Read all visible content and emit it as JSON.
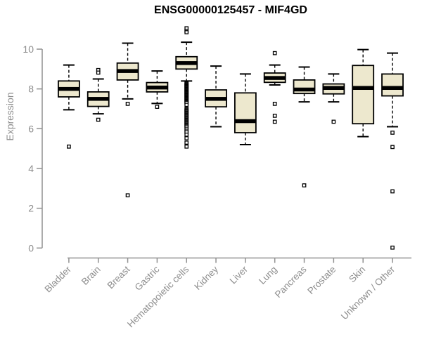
{
  "chart_data": {
    "type": "boxplot",
    "title": "ENSG00000125457 - MIF4GD",
    "xlabel": "",
    "ylabel": "Expression",
    "ylim": [
      0,
      11.2
    ],
    "yticks": [
      0,
      2,
      4,
      6,
      8,
      10
    ],
    "grid": false,
    "legend": "none",
    "categories": [
      "Bladder",
      "Brain",
      "Breast",
      "Gastric",
      "Hematopoietic cells",
      "Kidney",
      "Liver",
      "Lung",
      "Pancreas",
      "Prostate",
      "Skin",
      "Unknown / Other"
    ],
    "boxes": [
      {
        "label": "Bladder",
        "whisker_low": 6.95,
        "q1": 7.6,
        "median": 8.0,
        "q3": 8.4,
        "whisker_high": 9.2,
        "outliers": [
          5.1
        ]
      },
      {
        "label": "Brain",
        "whisker_low": 6.75,
        "q1": 7.12,
        "median": 7.5,
        "q3": 7.85,
        "whisker_high": 8.5,
        "outliers": [
          8.95,
          8.82,
          6.45
        ]
      },
      {
        "label": "Breast",
        "whisker_low": 7.5,
        "q1": 8.45,
        "median": 8.9,
        "q3": 9.3,
        "whisker_high": 10.3,
        "outliers": [
          7.25,
          2.65
        ]
      },
      {
        "label": "Gastric",
        "whisker_low": 7.27,
        "q1": 7.85,
        "median": 8.07,
        "q3": 8.32,
        "whisker_high": 8.9,
        "outliers": [
          7.1
        ]
      },
      {
        "label": "Hematopoietic cells",
        "whisker_low": 8.4,
        "q1": 9.0,
        "median": 9.3,
        "q3": 9.62,
        "whisker_high": 10.35,
        "outliers": [
          11.05,
          10.92,
          10.85,
          8.3,
          8.26,
          8.22,
          8.18,
          8.14,
          8.1,
          8.06,
          8.02,
          7.98,
          7.94,
          7.9,
          7.86,
          7.82,
          7.78,
          7.74,
          7.7,
          7.66,
          7.62,
          7.58,
          7.54,
          7.5,
          7.46,
          7.42,
          7.38,
          7.34,
          7.3,
          7.2,
          7.0,
          6.95,
          6.9,
          6.85,
          6.8,
          6.75,
          6.7,
          6.65,
          6.6,
          6.55,
          6.5,
          6.45,
          6.4,
          6.35,
          6.3,
          6.25,
          6.2,
          6.15,
          6.1,
          6.0,
          5.9,
          5.82,
          5.7,
          5.52,
          5.3,
          5.1
        ]
      },
      {
        "label": "Kidney",
        "whisker_low": 6.1,
        "q1": 7.1,
        "median": 7.5,
        "q3": 7.95,
        "whisker_high": 9.15,
        "outliers": []
      },
      {
        "label": "Liver",
        "whisker_low": 5.2,
        "q1": 5.8,
        "median": 6.38,
        "q3": 7.8,
        "whisker_high": 8.75,
        "outliers": []
      },
      {
        "label": "Lung",
        "whisker_low": 8.2,
        "q1": 8.33,
        "median": 8.55,
        "q3": 8.8,
        "whisker_high": 9.2,
        "outliers": [
          9.8,
          7.25,
          6.65,
          6.35
        ]
      },
      {
        "label": "Pancreas",
        "whisker_low": 7.35,
        "q1": 7.77,
        "median": 7.97,
        "q3": 8.45,
        "whisker_high": 9.1,
        "outliers": [
          3.15
        ]
      },
      {
        "label": "Prostate",
        "whisker_low": 7.35,
        "q1": 7.75,
        "median": 8.05,
        "q3": 8.25,
        "whisker_high": 8.75,
        "outliers": [
          6.35
        ]
      },
      {
        "label": "Skin",
        "whisker_low": 5.6,
        "q1": 6.25,
        "median": 8.05,
        "q3": 9.18,
        "whisker_high": 9.98,
        "outliers": []
      },
      {
        "label": "Unknown / Other",
        "whisker_low": 6.1,
        "q1": 7.65,
        "median": 8.05,
        "q3": 8.75,
        "whisker_high": 9.8,
        "outliers": [
          5.8,
          5.08,
          2.85,
          0.02
        ]
      }
    ],
    "colors": {
      "box_fill": "#EDE8CE",
      "box_stroke": "#000000",
      "median": "#000000",
      "axis": "#919191",
      "tick_label": "#8E8E8E",
      "title": "#000000",
      "background": "#FFFFFF"
    }
  }
}
